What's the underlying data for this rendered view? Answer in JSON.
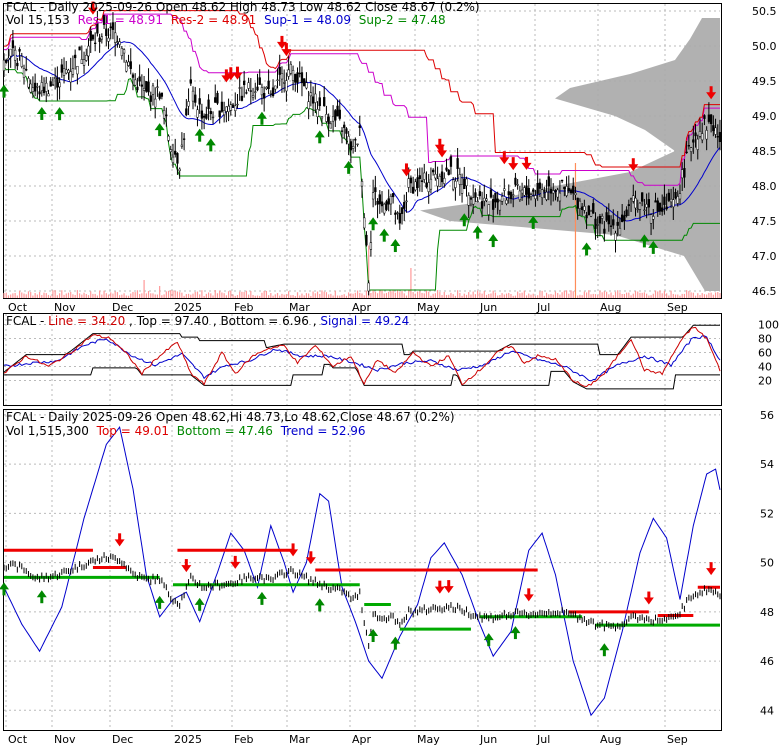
{
  "chart_data": [
    {
      "type": "candlestick",
      "ticker": "FCAL",
      "header": {
        "sym": "FCAL",
        "info": " - Daily 2025-09-26 Open 48.62  High 48.73  Low 48.62  Close 48.67 (0.2%)",
        "vol": "Vol 15,153",
        "res1": "Res-1 = 48.91",
        "res2": "Res-2 = 48.91",
        "sup1": "Sup-1 = 48.09",
        "sup2": "Sup-2 = 47.48"
      },
      "x_tick_labels": [
        "Oct",
        "Nov",
        "Dec",
        "2025",
        "Feb",
        "Mar",
        "Apr",
        "May",
        "Jun",
        "Jul",
        "Aug",
        "Sep"
      ],
      "y_tick_labels": [
        "50.5",
        "50.0",
        "49.5",
        "49.0",
        "48.5",
        "48.0",
        "47.5",
        "47.0",
        "46.5"
      ],
      "ylim": [
        46.4,
        50.6
      ],
      "grid": true,
      "series_close_keypoints": [
        [
          0,
          49.9
        ],
        [
          8,
          49.8
        ],
        [
          14,
          49.35
        ],
        [
          22,
          49.45
        ],
        [
          30,
          49.7
        ],
        [
          38,
          50.0
        ],
        [
          45,
          50.2
        ],
        [
          52,
          50.15
        ],
        [
          58,
          49.55
        ],
        [
          64,
          49.3
        ],
        [
          70,
          49.35
        ],
        [
          75,
          48.6
        ],
        [
          79,
          48.35
        ],
        [
          84,
          49.35
        ],
        [
          90,
          49.0
        ],
        [
          96,
          49.1
        ],
        [
          102,
          49.15
        ],
        [
          108,
          49.35
        ],
        [
          114,
          49.45
        ],
        [
          120,
          49.25
        ],
        [
          126,
          49.6
        ],
        [
          130,
          49.65
        ],
        [
          134,
          49.45
        ],
        [
          140,
          49.2
        ],
        [
          146,
          49.0
        ],
        [
          152,
          48.85
        ],
        [
          157,
          48.5
        ],
        [
          160,
          48.75
        ],
        [
          162,
          47.6
        ],
        [
          164,
          46.7
        ],
        [
          166,
          47.9
        ],
        [
          170,
          47.7
        ],
        [
          174,
          47.85
        ],
        [
          178,
          47.4
        ],
        [
          182,
          48.0
        ],
        [
          188,
          48.05
        ],
        [
          194,
          48.15
        ],
        [
          200,
          48.2
        ],
        [
          206,
          48.1
        ],
        [
          212,
          47.85
        ],
        [
          218,
          47.75
        ],
        [
          224,
          47.85
        ],
        [
          230,
          47.9
        ],
        [
          236,
          47.9
        ],
        [
          242,
          47.95
        ],
        [
          248,
          48.0
        ],
        [
          254,
          47.9
        ],
        [
          260,
          47.75
        ],
        [
          266,
          47.5
        ],
        [
          272,
          47.4
        ],
        [
          278,
          47.5
        ],
        [
          284,
          47.8
        ],
        [
          290,
          47.7
        ],
        [
          296,
          47.65
        ],
        [
          302,
          47.75
        ],
        [
          306,
          48.25
        ],
        [
          310,
          48.7
        ],
        [
          314,
          48.85
        ],
        [
          318,
          48.9
        ],
        [
          322,
          48.67
        ]
      ],
      "volume_spikes": [
        [
          257,
          0.9
        ],
        [
          164,
          0.35
        ],
        [
          183,
          0.2
        ],
        [
          63,
          0.12
        ],
        [
          70,
          0.08
        ]
      ],
      "down_arrows": [
        40,
        100,
        102,
        105,
        125,
        127,
        181,
        196,
        197,
        225,
        229,
        235,
        283,
        318
      ],
      "up_arrows": [
        0,
        17,
        25,
        70,
        88,
        93,
        116,
        142,
        155,
        166,
        171,
        176,
        207,
        213,
        220,
        238,
        262,
        288,
        292
      ],
      "overlays": [
        "Res-1",
        "Res-2",
        "Sup-1",
        "Sup-2",
        "moving-average",
        "volume-by-price"
      ]
    },
    {
      "type": "line",
      "name": "stochastic",
      "header": {
        "sym": "FCAL",
        "line": "Line = 34.20",
        "top": "Top = 97.40",
        "bottom": "Bottom = 6.96",
        "signal": "Signal = 49.24"
      },
      "y_tick_labels": [
        "100",
        "80",
        "60",
        "40",
        "20"
      ],
      "ylim": [
        0,
        100
      ],
      "line_keypoints": [
        [
          0,
          30
        ],
        [
          10,
          55
        ],
        [
          20,
          40
        ],
        [
          30,
          60
        ],
        [
          40,
          85
        ],
        [
          48,
          80
        ],
        [
          56,
          55
        ],
        [
          62,
          30
        ],
        [
          68,
          50
        ],
        [
          78,
          75
        ],
        [
          84,
          30
        ],
        [
          90,
          15
        ],
        [
          98,
          60
        ],
        [
          104,
          30
        ],
        [
          112,
          55
        ],
        [
          118,
          65
        ],
        [
          126,
          70
        ],
        [
          132,
          45
        ],
        [
          140,
          70
        ],
        [
          148,
          40
        ],
        [
          156,
          55
        ],
        [
          162,
          15
        ],
        [
          168,
          50
        ],
        [
          176,
          30
        ],
        [
          184,
          60
        ],
        [
          192,
          40
        ],
        [
          200,
          55
        ],
        [
          206,
          15
        ],
        [
          214,
          35
        ],
        [
          222,
          60
        ],
        [
          228,
          70
        ],
        [
          234,
          45
        ],
        [
          240,
          55
        ],
        [
          248,
          50
        ],
        [
          256,
          20
        ],
        [
          262,
          10
        ],
        [
          270,
          30
        ],
        [
          276,
          55
        ],
        [
          282,
          80
        ],
        [
          288,
          35
        ],
        [
          296,
          30
        ],
        [
          304,
          75
        ],
        [
          310,
          97
        ],
        [
          316,
          80
        ],
        [
          322,
          34.2
        ]
      ],
      "signal_keypoints": [
        [
          0,
          40
        ],
        [
          12,
          45
        ],
        [
          24,
          48
        ],
        [
          36,
          70
        ],
        [
          46,
          80
        ],
        [
          58,
          55
        ],
        [
          68,
          42
        ],
        [
          80,
          58
        ],
        [
          90,
          25
        ],
        [
          100,
          42
        ],
        [
          110,
          48
        ],
        [
          122,
          65
        ],
        [
          134,
          55
        ],
        [
          146,
          55
        ],
        [
          158,
          45
        ],
        [
          168,
          35
        ],
        [
          180,
          45
        ],
        [
          192,
          48
        ],
        [
          204,
          35
        ],
        [
          216,
          42
        ],
        [
          228,
          62
        ],
        [
          240,
          50
        ],
        [
          252,
          40
        ],
        [
          264,
          20
        ],
        [
          276,
          42
        ],
        [
          288,
          55
        ],
        [
          300,
          42
        ],
        [
          310,
          82
        ],
        [
          316,
          82
        ],
        [
          322,
          49.24
        ]
      ],
      "top_band": 97.4,
      "bottom_band": 6.96
    },
    {
      "type": "candlestick",
      "name": "trend",
      "header": {
        "sym": "FCAL",
        "info": " - Daily 2025-09-26 Open 48.62,Hi 48.73,Lo 48.62,Close 48.67 (0.2%)",
        "vol": "Vol 1,515,300",
        "top": "Top = 49.01",
        "bottom": "Bottom = 47.46",
        "trend": "Trend = 52.96"
      },
      "y_tick_labels": [
        "56",
        "54",
        "52",
        "50",
        "48",
        "46",
        "44"
      ],
      "ylim": [
        43.2,
        56.2
      ],
      "trend_keypoints": [
        [
          0,
          49
        ],
        [
          8,
          47.5
        ],
        [
          16,
          46.4
        ],
        [
          26,
          48.2
        ],
        [
          36,
          51.8
        ],
        [
          46,
          54.8
        ],
        [
          52,
          55.5
        ],
        [
          58,
          53
        ],
        [
          64,
          49.5
        ],
        [
          70,
          47.8
        ],
        [
          76,
          48.5
        ],
        [
          82,
          48.8
        ],
        [
          88,
          47.6
        ],
        [
          96,
          49.6
        ],
        [
          102,
          51.2
        ],
        [
          108,
          50.5
        ],
        [
          114,
          49
        ],
        [
          120,
          51.5
        ],
        [
          126,
          50
        ],
        [
          130,
          48.8
        ],
        [
          136,
          50
        ],
        [
          142,
          52.8
        ],
        [
          146,
          52.5
        ],
        [
          152,
          49
        ],
        [
          158,
          47.6
        ],
        [
          164,
          46
        ],
        [
          170,
          45.3
        ],
        [
          178,
          47
        ],
        [
          186,
          48.3
        ],
        [
          192,
          50.2
        ],
        [
          198,
          50.8
        ],
        [
          206,
          49.5
        ],
        [
          214,
          47.5
        ],
        [
          220,
          46.2
        ],
        [
          228,
          47.2
        ],
        [
          236,
          50.5
        ],
        [
          242,
          51.2
        ],
        [
          248,
          49.5
        ],
        [
          256,
          46
        ],
        [
          264,
          43.8
        ],
        [
          270,
          44.5
        ],
        [
          278,
          47.2
        ],
        [
          286,
          50.4
        ],
        [
          292,
          51.8
        ],
        [
          298,
          51
        ],
        [
          304,
          48.5
        ],
        [
          310,
          51.5
        ],
        [
          316,
          53.6
        ],
        [
          320,
          53.8
        ],
        [
          322,
          52.96
        ]
      ],
      "red_resistance_segments": [
        [
          0,
          40,
          50.5
        ],
        [
          40,
          55,
          49.8
        ],
        [
          78,
          130,
          50.5
        ],
        [
          140,
          240,
          49.7
        ],
        [
          254,
          290,
          48.0
        ],
        [
          294,
          310,
          47.85
        ],
        [
          312,
          322,
          49.0
        ]
      ],
      "green_support_segments": [
        [
          0,
          70,
          49.4
        ],
        [
          76,
          160,
          49.1
        ],
        [
          162,
          174,
          48.3
        ],
        [
          178,
          210,
          47.3
        ],
        [
          214,
          260,
          47.8
        ],
        [
          266,
          322,
          47.46
        ]
      ],
      "down_arrows": [
        52,
        82,
        104,
        130,
        138,
        196,
        200,
        236,
        290,
        318
      ],
      "up_arrows": [
        0,
        17,
        70,
        88,
        116,
        142,
        166,
        176,
        218,
        230,
        270
      ]
    }
  ]
}
